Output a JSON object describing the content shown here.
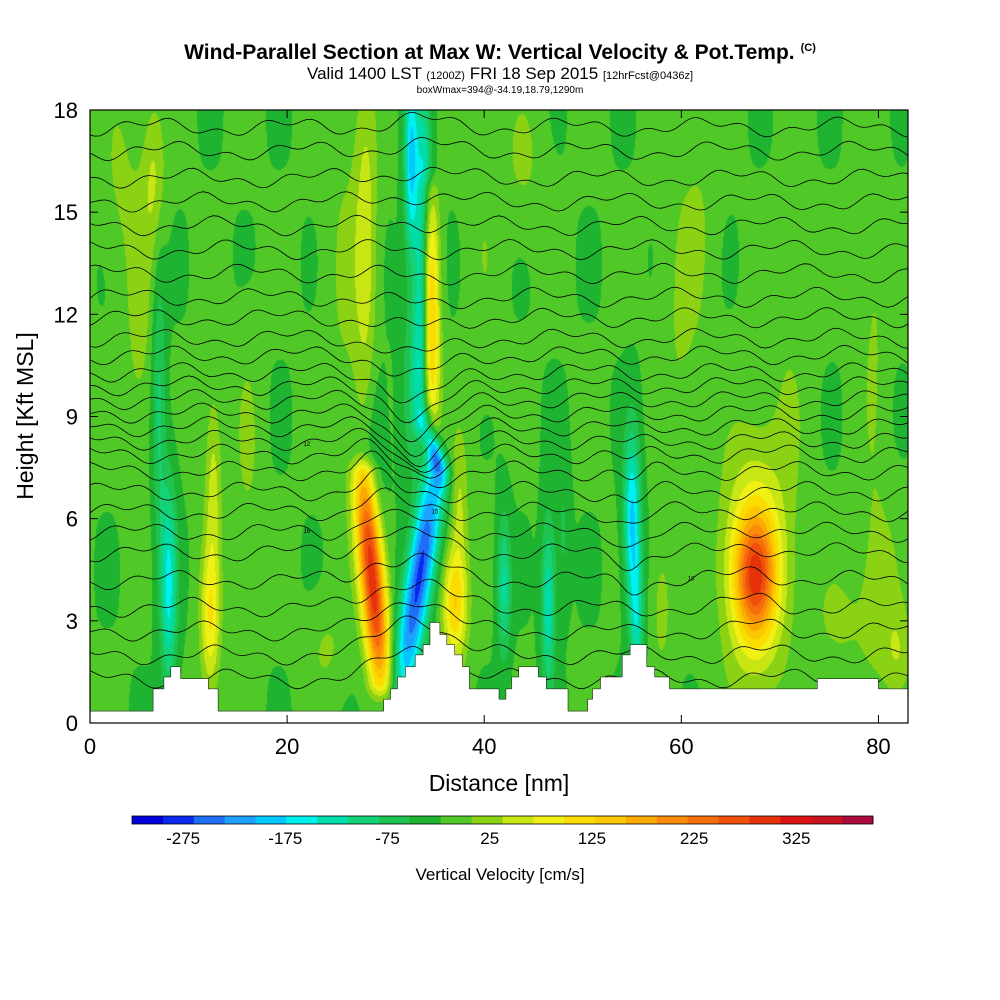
{
  "title": {
    "main": "Wind-Parallel Section at Max W: Vertical Velocity & Pot.Temp.",
    "copyright": "(C)",
    "valid_prefix": "Valid 1400 LST",
    "valid_utc": "(1200Z)",
    "valid_date": "FRI 18 Sep 2015",
    "forecast": "[12hrFcst@0436z]",
    "box_info": "boxWmax=394@-34.19,18.79,1290m"
  },
  "chart_data": {
    "type": "heatmap",
    "xlabel": "Distance [nm]",
    "ylabel": "Height [Kft MSL]",
    "xlim": [
      0,
      83
    ],
    "ylim": [
      0,
      18
    ],
    "x_ticks": [
      0,
      20,
      40,
      60,
      80
    ],
    "y_ticks": [
      0,
      3,
      6,
      9,
      12,
      15,
      18
    ],
    "x_tick_labels": [
      "0",
      "20",
      "40",
      "60",
      "80"
    ],
    "y_tick_labels": [
      "0",
      "3",
      "6",
      "9",
      "12",
      "15",
      "18"
    ],
    "background_value": -20,
    "colorbar": {
      "label": "Vertical Velocity [cm/s]",
      "tick_values": [
        -275,
        -175,
        -75,
        25,
        125,
        225,
        325
      ],
      "tick_labels": [
        "-275",
        "-175",
        "-75",
        "25",
        "125",
        "225",
        "325"
      ],
      "min": -325,
      "max": 400,
      "colors": [
        "#0000dc",
        "#0a28f0",
        "#1e6ef5",
        "#1ea0ff",
        "#00c8ff",
        "#00f0f0",
        "#00dcaa",
        "#14d278",
        "#1ec350",
        "#1eb432",
        "#50c828",
        "#8cd214",
        "#c8e614",
        "#f0f014",
        "#fadc00",
        "#fac800",
        "#faaa00",
        "#fa8c0a",
        "#f56e0a",
        "#f0500a",
        "#e6320a",
        "#dc1414",
        "#c8141e",
        "#aa0a3c"
      ]
    },
    "velocity_features": [
      {
        "x": 8.0,
        "y": 4.0,
        "sx": 0.6,
        "sy": 2.2,
        "w": -130
      },
      {
        "x": 7.0,
        "y": 9.5,
        "sx": 0.5,
        "sy": 3.0,
        "w": -70
      },
      {
        "x": 12.2,
        "y": 3.0,
        "sx": 0.7,
        "sy": 1.5,
        "w": 110
      },
      {
        "x": 12.5,
        "y": 7.0,
        "sx": 0.6,
        "sy": 2.0,
        "w": 70
      },
      {
        "x": 5.0,
        "y": 12.0,
        "sx": 1.0,
        "sy": 3.0,
        "w": 40
      },
      {
        "x": 3.0,
        "y": 16.0,
        "sx": 1.2,
        "sy": 2.0,
        "w": 30
      },
      {
        "x": 6.5,
        "y": 16.0,
        "sx": 0.8,
        "sy": 1.6,
        "w": 60
      },
      {
        "x": 16.0,
        "y": 8.0,
        "sx": 1.0,
        "sy": 2.5,
        "w": 30
      },
      {
        "x": 24.0,
        "y": 2.2,
        "sx": 1.5,
        "sy": 1.0,
        "w": 30
      },
      {
        "x": 33.0,
        "y": 10.0,
        "sx": 1.0,
        "sy": 2.0,
        "w": -60
      },
      {
        "x": 29.0,
        "y": 8.0,
        "sx": 0.8,
        "sy": 2.0,
        "w": -40
      },
      {
        "x": 28.0,
        "y": 14.0,
        "sx": 0.8,
        "sy": 3.5,
        "w": 70
      },
      {
        "x": 26.0,
        "y": 13.0,
        "sx": 1.5,
        "sy": 4.0,
        "w": 30
      },
      {
        "x": 32.6,
        "y": 16.5,
        "sx": 0.5,
        "sy": 2.0,
        "w": -160
      },
      {
        "x": 37.0,
        "y": 3.5,
        "sx": 0.9,
        "sy": 1.2,
        "w": 150
      },
      {
        "x": 37.5,
        "y": 6.5,
        "sx": 0.6,
        "sy": 1.5,
        "w": 60
      },
      {
        "x": 42.0,
        "y": 4.0,
        "sx": 0.5,
        "sy": 1.5,
        "w": -100
      },
      {
        "x": 46.5,
        "y": 3.5,
        "sx": 0.5,
        "sy": 1.8,
        "w": -120
      },
      {
        "x": 48.0,
        "y": 5.5,
        "sx": 0.5,
        "sy": 1.5,
        "w": -40
      },
      {
        "x": 40.0,
        "y": 14.0,
        "sx": 1.2,
        "sy": 3.0,
        "w": 20
      },
      {
        "x": 44.0,
        "y": 16.5,
        "sx": 1.5,
        "sy": 1.5,
        "w": 30
      },
      {
        "x": 55.0,
        "y": 6.0,
        "sx": 0.6,
        "sy": 1.8,
        "w": -160
      },
      {
        "x": 55.5,
        "y": 3.0,
        "sx": 0.5,
        "sy": 1.5,
        "w": -100
      },
      {
        "x": 58.0,
        "y": 3.5,
        "sx": 0.8,
        "sy": 1.5,
        "w": 40
      },
      {
        "x": 60.0,
        "y": 12.0,
        "sx": 1.5,
        "sy": 3.5,
        "w": 30
      },
      {
        "x": 62.0,
        "y": 15.0,
        "sx": 1.2,
        "sy": 2.5,
        "w": 20
      },
      {
        "x": 67.5,
        "y": 4.3,
        "sx": 1.5,
        "sy": 1.3,
        "w": 220
      },
      {
        "x": 67.5,
        "y": 4.8,
        "sx": 2.4,
        "sy": 2.6,
        "w": 100
      },
      {
        "x": 76.0,
        "y": 3.0,
        "sx": 2.0,
        "sy": 1.2,
        "w": 30
      },
      {
        "x": 80.0,
        "y": 4.0,
        "sx": 1.5,
        "sy": 2.0,
        "w": 40
      },
      {
        "x": 79.5,
        "y": 12.0,
        "sx": 1.0,
        "sy": 4.0,
        "w": 30
      },
      {
        "x": 71.0,
        "y": 10.0,
        "sx": 1.5,
        "sy": 3.0,
        "w": 20
      },
      {
        "x": 82.0,
        "y": 2.0,
        "sx": 1.0,
        "sy": 1.0,
        "w": 50
      }
    ],
    "updraft_cores": [
      {
        "x_bottom": 29.5,
        "x_top": 27.8,
        "y_bottom": 1.3,
        "y_top": 7.2,
        "sx": 0.9,
        "w": 330
      },
      {
        "x_bottom": 34.6,
        "x_top": 34.4,
        "y_bottom": 8.5,
        "y_top": 15.5,
        "sx": 0.65,
        "w": 190
      }
    ],
    "downdraft_cores": [
      {
        "x_bottom": 31.8,
        "x_top": 35.0,
        "y_bottom": 1.2,
        "y_top": 7.3,
        "sx": 1.0,
        "w": -260
      },
      {
        "x_bottom": 35.5,
        "x_top": 34.2,
        "y_bottom": 7.3,
        "y_top": 8.8,
        "sx": 0.6,
        "w": -200
      },
      {
        "x_bottom": 33.6,
        "x_top": 33.9,
        "y_bottom": 9.0,
        "y_top": 18.0,
        "sx": 0.55,
        "w": -150
      }
    ],
    "isentropes": [
      {
        "level": 1.3,
        "label": "",
        "ty": 0.9
      },
      {
        "level": 2.0,
        "label": "",
        "ty": 1.2
      },
      {
        "level": 2.7,
        "label": "",
        "ty": 1.0
      },
      {
        "level": 3.4,
        "label": "",
        "ty": 0.8
      },
      {
        "level": 4.2,
        "label": "18",
        "ty": 0.6
      },
      {
        "level": 5.0,
        "label": "",
        "ty": 0.5
      },
      {
        "level": 5.6,
        "label": "16",
        "ty": 0.3
      },
      {
        "level": 6.2,
        "label": "15",
        "ty": 0.1
      },
      {
        "level": 6.8,
        "label": "",
        "ty": -0.1
      },
      {
        "level": 7.4,
        "label": "",
        "ty": -0.3
      },
      {
        "level": 7.9,
        "label": "",
        "ty": -0.5
      },
      {
        "level": 8.3,
        "label": "12",
        "ty": -0.7
      },
      {
        "level": 8.7,
        "label": "",
        "ty": -0.9
      },
      {
        "level": 9.1,
        "label": "",
        "ty": -1.0
      },
      {
        "level": 9.5,
        "label": "",
        "ty": -1.0
      },
      {
        "level": 9.9,
        "label": "",
        "ty": -0.9
      },
      {
        "level": 10.3,
        "label": "",
        "ty": -0.8
      },
      {
        "level": 10.8,
        "label": "",
        "ty": -0.6
      },
      {
        "level": 11.3,
        "label": "",
        "ty": -0.5
      },
      {
        "level": 11.9,
        "label": "",
        "ty": -0.3
      },
      {
        "level": 12.5,
        "label": "",
        "ty": -0.2
      },
      {
        "level": 13.2,
        "label": "",
        "ty": -0.1
      },
      {
        "level": 13.9,
        "label": "",
        "ty": 0.0
      },
      {
        "level": 14.6,
        "label": "",
        "ty": 0.1
      },
      {
        "level": 15.3,
        "label": "",
        "ty": 0.2
      },
      {
        "level": 16.0,
        "label": "",
        "ty": 0.2
      },
      {
        "level": 16.8,
        "label": "",
        "ty": 0.2
      },
      {
        "level": 17.5,
        "label": "",
        "ty": 0.2
      }
    ],
    "terrain_profile": [
      [
        0,
        0.35
      ],
      [
        6.4,
        0.35
      ],
      [
        6.4,
        1.0
      ],
      [
        7.5,
        1.0
      ],
      [
        7.5,
        1.35
      ],
      [
        8.2,
        1.35
      ],
      [
        8.2,
        1.65
      ],
      [
        9.2,
        1.65
      ],
      [
        9.2,
        1.3
      ],
      [
        12.0,
        1.3
      ],
      [
        12.0,
        1.0
      ],
      [
        13.0,
        1.0
      ],
      [
        13.0,
        0.35
      ],
      [
        29.8,
        0.35
      ],
      [
        29.8,
        0.7
      ],
      [
        30.5,
        0.7
      ],
      [
        30.5,
        1.0
      ],
      [
        31.2,
        1.0
      ],
      [
        31.2,
        1.35
      ],
      [
        32.0,
        1.35
      ],
      [
        32.0,
        1.65
      ],
      [
        33.0,
        1.65
      ],
      [
        33.0,
        2.0
      ],
      [
        33.8,
        2.0
      ],
      [
        33.8,
        2.3
      ],
      [
        34.5,
        2.3
      ],
      [
        34.5,
        2.95
      ],
      [
        35.5,
        2.95
      ],
      [
        35.5,
        2.6
      ],
      [
        36.2,
        2.6
      ],
      [
        36.2,
        2.3
      ],
      [
        37.0,
        2.3
      ],
      [
        37.0,
        2.0
      ],
      [
        37.8,
        2.0
      ],
      [
        37.8,
        1.65
      ],
      [
        38.5,
        1.65
      ],
      [
        38.5,
        1.35
      ],
      [
        38.5,
        1.0
      ],
      [
        41.5,
        1.0
      ],
      [
        41.5,
        0.7
      ],
      [
        42.2,
        0.7
      ],
      [
        42.2,
        1.0
      ],
      [
        42.8,
        1.0
      ],
      [
        42.8,
        1.35
      ],
      [
        43.5,
        1.35
      ],
      [
        43.5,
        1.65
      ],
      [
        45.5,
        1.65
      ],
      [
        45.5,
        1.35
      ],
      [
        46.3,
        1.35
      ],
      [
        46.3,
        1.0
      ],
      [
        48.5,
        1.0
      ],
      [
        48.5,
        0.35
      ],
      [
        50.5,
        0.35
      ],
      [
        50.5,
        0.7
      ],
      [
        51.0,
        0.7
      ],
      [
        51.0,
        1.0
      ],
      [
        51.8,
        1.0
      ],
      [
        51.8,
        1.35
      ],
      [
        54.0,
        1.35
      ],
      [
        54.0,
        2.0
      ],
      [
        54.8,
        2.0
      ],
      [
        54.8,
        2.3
      ],
      [
        56.5,
        2.3
      ],
      [
        56.5,
        1.65
      ],
      [
        57.3,
        1.65
      ],
      [
        57.3,
        1.35
      ],
      [
        58.8,
        1.35
      ],
      [
        58.8,
        1.0
      ],
      [
        73.8,
        1.0
      ],
      [
        73.8,
        1.3
      ],
      [
        80.0,
        1.3
      ],
      [
        80.0,
        1.0
      ],
      [
        83,
        1.0
      ],
      [
        83,
        0.35
      ]
    ]
  }
}
